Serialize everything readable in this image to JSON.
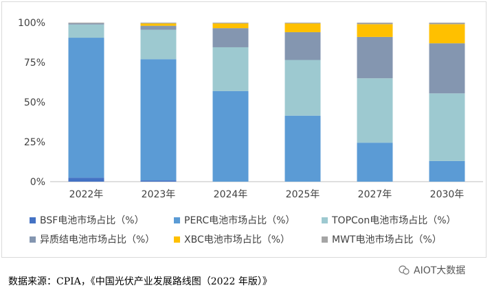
{
  "chart_data": {
    "type": "bar",
    "stacked": true,
    "categories": [
      "2022年",
      "2023年",
      "2024年",
      "2025年",
      "2027年",
      "2030年"
    ],
    "series": [
      {
        "name": "BSF电池市场占比（%）",
        "color": "#4472c4",
        "values": [
          2.5,
          0.8,
          0,
          0,
          0,
          0
        ]
      },
      {
        "name": "PERC电池市场占比（%）",
        "color": "#5b9bd5",
        "values": [
          88.0,
          76.2,
          57.0,
          41.5,
          24.5,
          13.0
        ]
      },
      {
        "name": "TOPCon电池市场占比（%）",
        "color": "#9dc9d0",
        "values": [
          8.3,
          18.5,
          27.5,
          35.0,
          40.5,
          42.5
        ]
      },
      {
        "name": "异质结电池市场占比（%）",
        "color": "#8496b0",
        "values": [
          0.7,
          2.5,
          12.0,
          17.5,
          26.0,
          31.5
        ]
      },
      {
        "name": "XBC电池市场占比（%）",
        "color": "#ffc000",
        "values": [
          0,
          1.5,
          3.0,
          5.5,
          8.0,
          12.0
        ]
      },
      {
        "name": "MWT电池市场占比（%）",
        "color": "#a5a5a5",
        "values": [
          0.5,
          0.5,
          0.5,
          0.5,
          1.0,
          1.0
        ]
      }
    ],
    "ylim": [
      0,
      100
    ],
    "yticks": [
      "0%",
      "25%",
      "50%",
      "75%",
      "100%"
    ],
    "grid": false,
    "legend_position": "bottom"
  },
  "source_note": "数据来源：CPIA，《中国光伏产业发展路线图（2022 年版）》",
  "watermark": "AIOT大数据"
}
